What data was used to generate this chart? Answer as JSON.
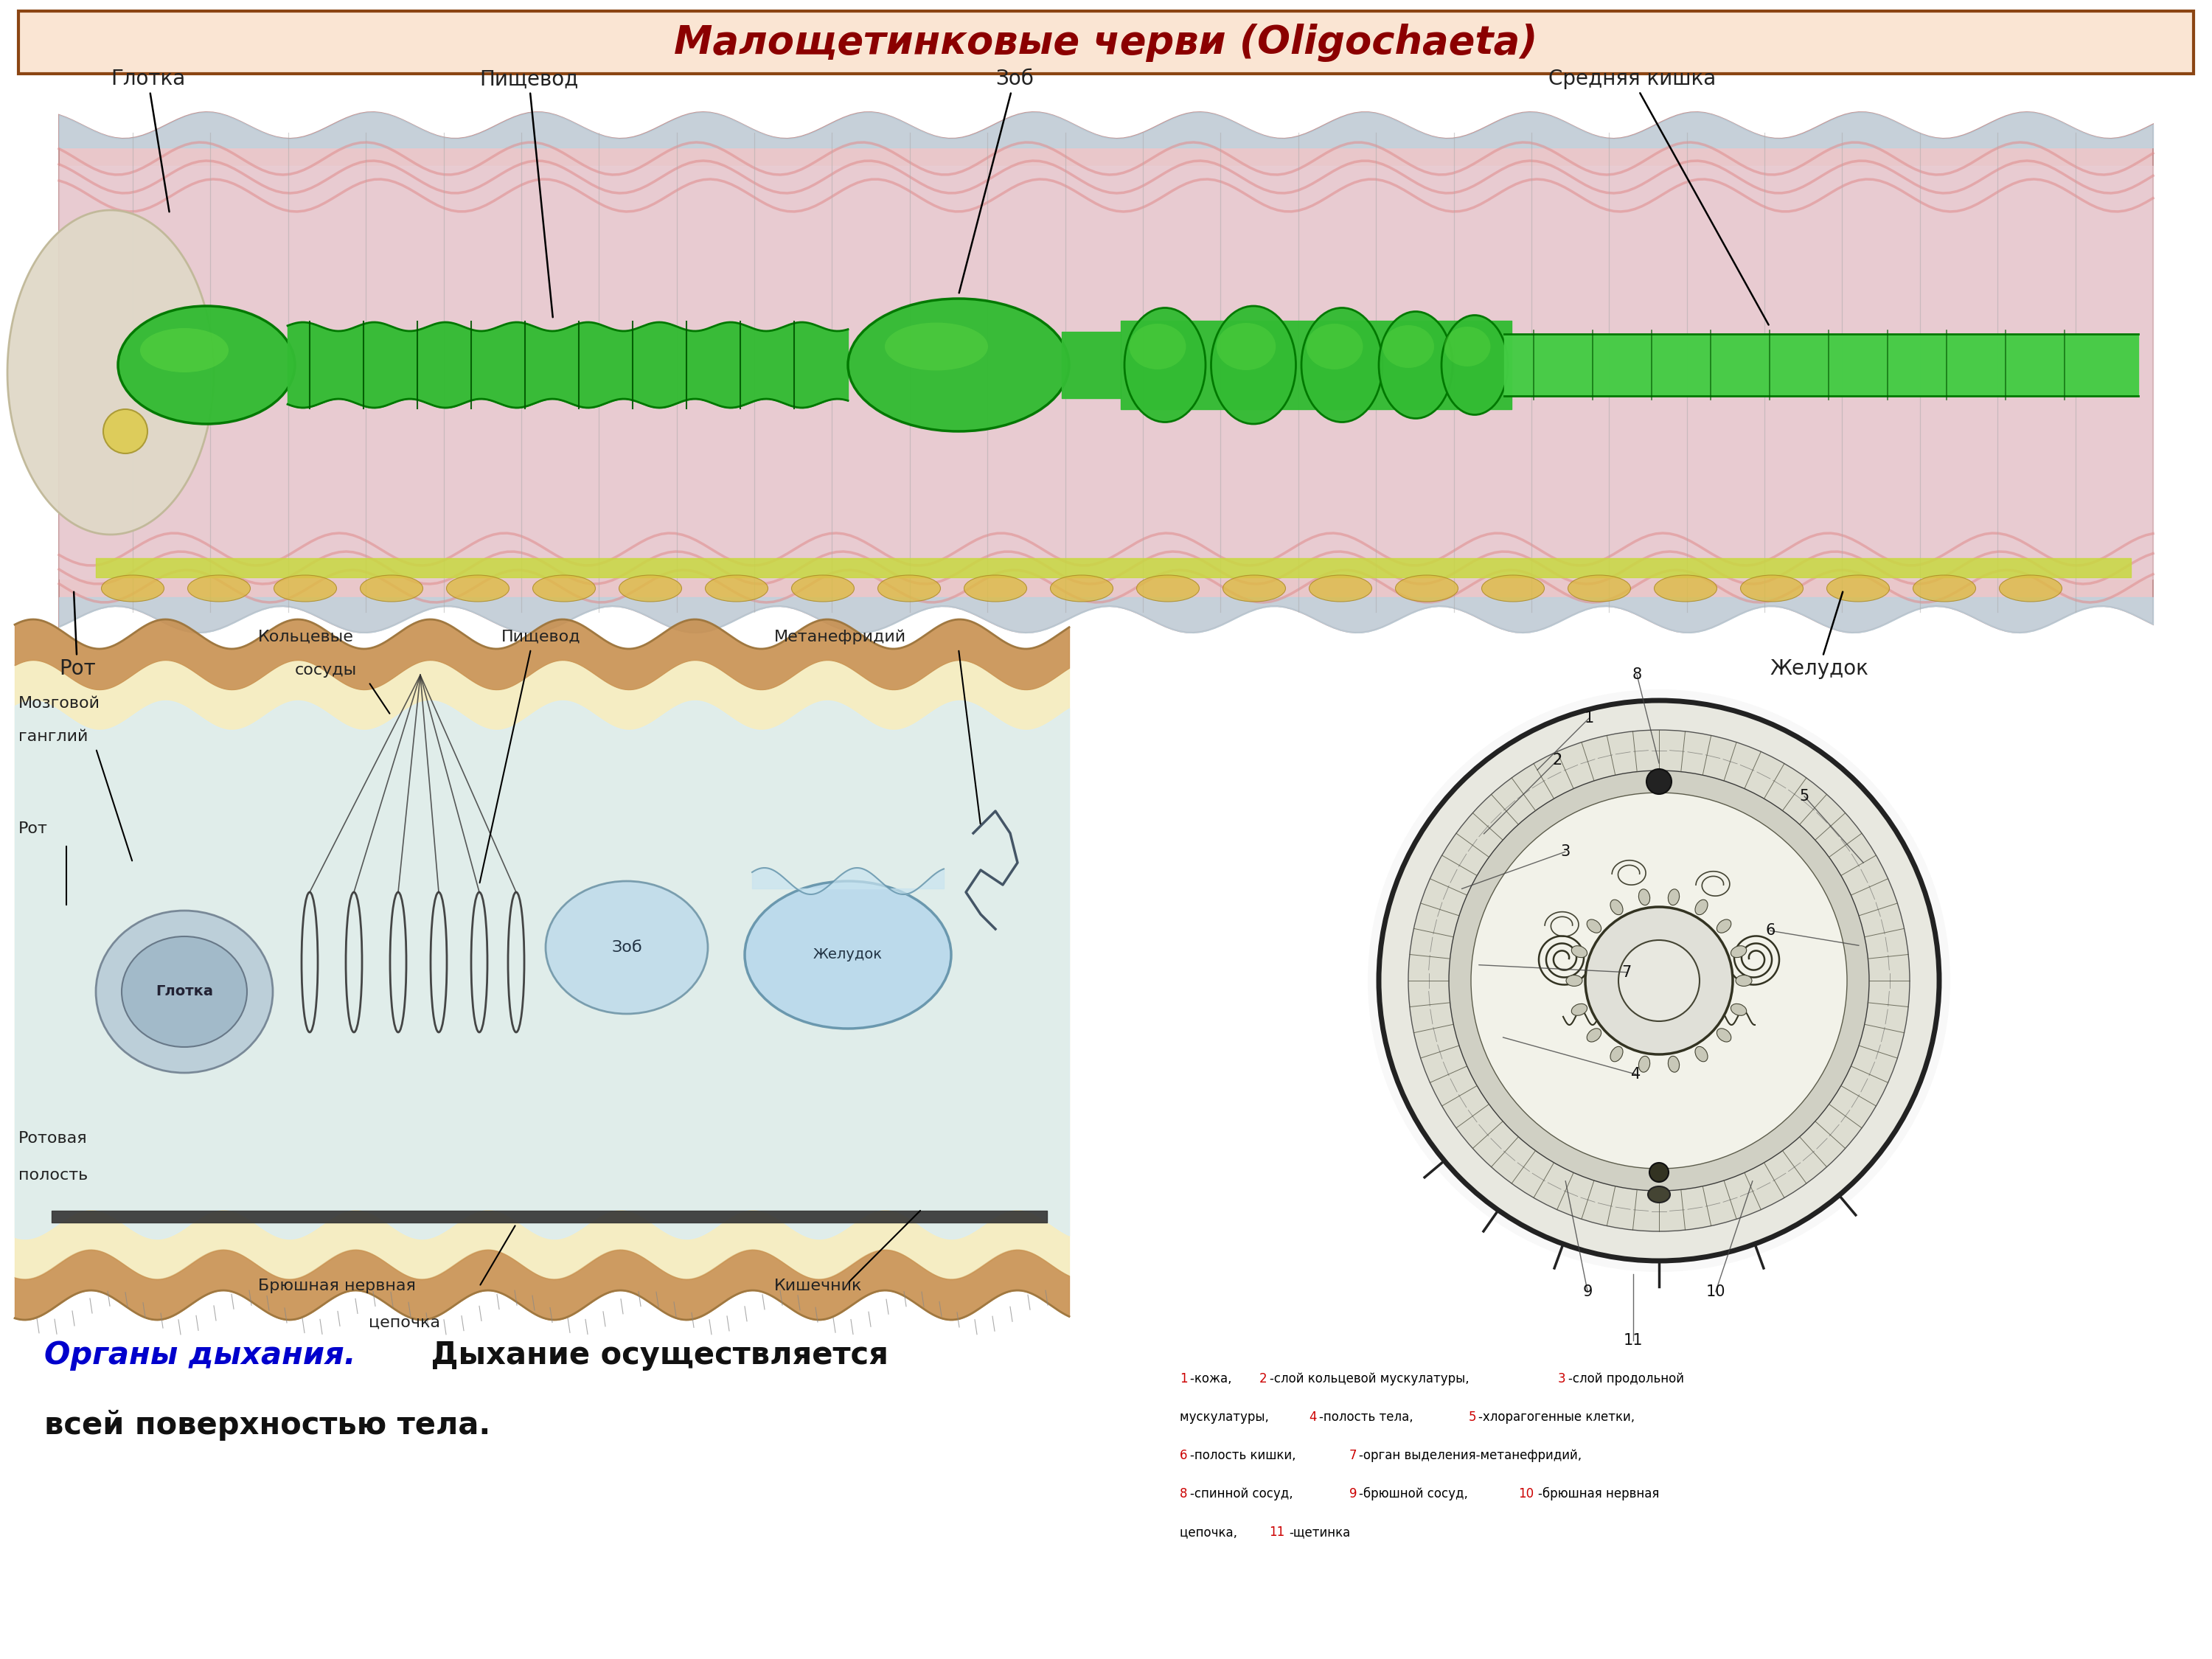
{
  "title": "Малощетинковые черви (Oligochaeta)",
  "title_color": "#8B0000",
  "title_bg": "#fae5d3",
  "title_border": "#8B4513",
  "bg_color": "#ffffff",
  "bottom_text_blue": "Органы дыхания.",
  "bottom_text_black": " Дыхание осуществляется",
  "bottom_text_black2": "всей поверхностью тела.",
  "worm_body_color": "#e8c0c0",
  "worm_body_edge": "#b08080",
  "worm_blue_layer": "#b8d8e8",
  "worm_pink_muscle": "#e09090",
  "worm_green": "#22aa22",
  "worm_green_dark": "#006600",
  "worm_head_color": "#e8ddd0",
  "worm_yellow": "#ddcc44",
  "worm_segment_lines": "#999999",
  "worm_top_labels": [
    "Глотка",
    "Пищевод",
    "Зоб",
    "Средняя кишка"
  ],
  "worm_bot_labels": [
    "Рот",
    "Желудок"
  ],
  "body2_bg": "#f5edd0",
  "body2_border": "#c09050",
  "body2_inner": "#dff0f8",
  "cross_bg": "#f0f0f0",
  "legend_lines": [
    [
      [
        "1",
        "#cc0000"
      ],
      [
        "-кожа, ",
        "#000000"
      ],
      [
        "2",
        "#cc0000"
      ],
      [
        "-слой кольцевой мускулатуры, ",
        "#000000"
      ],
      [
        "3",
        "#cc0000"
      ],
      [
        "-слой продольной",
        "#000000"
      ]
    ],
    [
      [
        "мускулатуры, ",
        "#000000"
      ],
      [
        "4",
        "#cc0000"
      ],
      [
        "-полость тела, ",
        "#000000"
      ],
      [
        "5",
        "#cc0000"
      ],
      [
        "-хлорагогенные клетки,",
        "#000000"
      ]
    ],
    [
      [
        "6",
        "#cc0000"
      ],
      [
        "-полость кишки, ",
        "#000000"
      ],
      [
        "7",
        "#cc0000"
      ],
      [
        "-орган выделения-метанефридий,",
        "#000000"
      ]
    ],
    [
      [
        "8",
        "#cc0000"
      ],
      [
        "-спинной сосуд, ",
        "#000000"
      ],
      [
        "9",
        "#cc0000"
      ],
      [
        "-брюшной сосуд, ",
        "#000000"
      ],
      [
        "10",
        "#cc0000"
      ],
      [
        "-брюшная нервная",
        "#000000"
      ]
    ],
    [
      [
        "цепочка, ",
        "#000000"
      ],
      [
        "11",
        "#cc0000"
      ],
      [
        "-щетинка",
        "#000000"
      ]
    ]
  ]
}
